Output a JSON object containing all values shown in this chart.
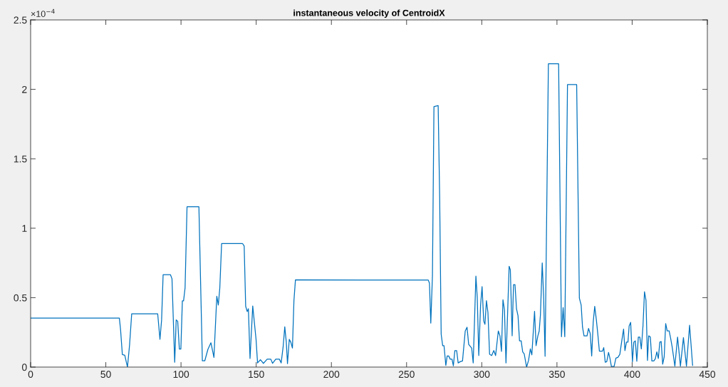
{
  "chart_data": {
    "type": "line",
    "title": "instantaneous velocity of CentroidX",
    "annotations": [
      "×10$^{−4}$"
    ],
    "xlim": [
      0,
      450
    ],
    "xticks": [
      0,
      50,
      100,
      150,
      200,
      250,
      300,
      350,
      400,
      450
    ],
    "ylim": [
      0,
      2.5
    ],
    "yticks": [
      0,
      0.5,
      1,
      1.5,
      2,
      2.5
    ],
    "grid": false,
    "marker": "none",
    "line_style": "solid",
    "series": [
      {
        "color": "#0072bd",
        "x": [
          0,
          59,
          59.8,
          61,
          62.6,
          64.4,
          65.8,
          67.2,
          84.5,
          86,
          87.1,
          88.1,
          93,
          94,
          95.8,
          96.8,
          97.8,
          98.9,
          99.9,
          100.9,
          101.7,
          102.7,
          104,
          111.9,
          114.2,
          115.8,
          117.9,
          119.9,
          121.9,
          123.8,
          124.8,
          125.8,
          127,
          140.9,
          142,
          143,
          144,
          144.8,
          145.9,
          147.7,
          149.9,
          150.9,
          152.8,
          154.8,
          157.3,
          159.7,
          160.9,
          163,
          165.4,
          166.6,
          167.9,
          169,
          170,
          170.8,
          172,
          173,
          174.1,
          175.1,
          176.1,
          264.4,
          265.2,
          266.1,
          267.2,
          268.2,
          271,
          272,
          273,
          274,
          274.9,
          276.1,
          277,
          278,
          279,
          280.2,
          281.1,
          282.1,
          283.3,
          284.3,
          285.7,
          287.2,
          289,
          290.2,
          291.3,
          293.3,
          294.3,
          296.1,
          297,
          298,
          299.2,
          300.2,
          301.3,
          302.1,
          303.1,
          304.1,
          305.2,
          306.6,
          308,
          309.2,
          311,
          312.1,
          313.1,
          314.1,
          315.1,
          316.1,
          318.2,
          319,
          320.2,
          321.1,
          322.1,
          323.1,
          324.1,
          325.1,
          326.2,
          327.2,
          328.2,
          329.8,
          331.1,
          332.3,
          333.3,
          335.1,
          336.1,
          337.3,
          338.2,
          339,
          340.2,
          341.1,
          342.1,
          344.3,
          351.1,
          353,
          354.1,
          355.2,
          357,
          363.1,
          364.9,
          366.1,
          367,
          368,
          370,
          371,
          372.1,
          373.1,
          374.1,
          375.1,
          376.2,
          377.2,
          378.2,
          380.3,
          381.1,
          382.1,
          383.1,
          384.3,
          385.2,
          386.2,
          388,
          389.2,
          390.5,
          391.8,
          393.1,
          394.3,
          395.2,
          396.2,
          397.2,
          398,
          399,
          400.2,
          401.1,
          402.1,
          403.1,
          404.1,
          405.1,
          406.1,
          407.2,
          408.2,
          409.2,
          410.2,
          411,
          412.1,
          413.1,
          414.4,
          415.4,
          416.4,
          417.4,
          418.4,
          419.3,
          420.3,
          421.3,
          422.3,
          423.3,
          424.6,
          425.6,
          426.6,
          428.4,
          430.2,
          432.1,
          434.1,
          436.1,
          438.2,
          440.2
        ],
        "values": [
          0.353,
          0.353,
          0.27,
          0.09,
          0.085,
          0,
          0.16,
          0.383,
          0.383,
          0.2,
          0.34,
          0.665,
          0.665,
          0.636,
          0.035,
          0.34,
          0.33,
          0.13,
          0.13,
          0.477,
          0.477,
          0.57,
          1.154,
          1.154,
          0.045,
          0.045,
          0.128,
          0.175,
          0.07,
          0.51,
          0.447,
          0.57,
          0.89,
          0.89,
          0.872,
          0.438,
          0.4,
          0.42,
          0.062,
          0.44,
          0.2,
          0.03,
          0.053,
          0.027,
          0.057,
          0.057,
          0.027,
          0.057,
          0.057,
          0.03,
          0.145,
          0.29,
          0.18,
          0.025,
          0.2,
          0.18,
          0.137,
          0.48,
          0.628,
          0.627,
          0.605,
          0.317,
          0.66,
          1.876,
          1.883,
          1.225,
          0.237,
          0.154,
          0.154,
          0.012,
          0.08,
          0.08,
          0.057,
          0.057,
          0.009,
          0.119,
          0.119,
          0.03,
          0.039,
          0.044,
          0.26,
          0.287,
          0.163,
          0.136,
          0.03,
          0.655,
          0.5,
          0.083,
          0.446,
          0.579,
          0.331,
          0.308,
          0.478,
          0.393,
          0.092,
          0.083,
          0.119,
          0.083,
          0.26,
          0.225,
          0.113,
          0.485,
          0.411,
          0.03,
          0.726,
          0.7,
          0.225,
          0.593,
          0.593,
          0.419,
          0.37,
          0.189,
          0.189,
          0.11,
          0.096,
          0,
          0.048,
          0.131,
          0.088,
          0.402,
          0.154,
          0.225,
          0.26,
          0.375,
          0.75,
          0.517,
          0.078,
          2.184,
          2.184,
          0.219,
          0.428,
          0.219,
          2.034,
          2.034,
          0.496,
          0.446,
          0.287,
          0.225,
          0.225,
          0.278,
          0.242,
          0.08,
          0.322,
          0.437,
          0.34,
          0.234,
          0.115,
          0.115,
          0.14,
          0.035,
          0.039,
          0.106,
          0.065,
          0.004,
          0.004,
          0.065,
          0.07,
          0.092,
          0.189,
          0.274,
          0.119,
          0.18,
          0.18,
          0.296,
          0.322,
          0.039,
          0.18,
          0.189,
          0.042,
          0.216,
          0.216,
          0.131,
          0.296,
          0.542,
          0.481,
          0.048,
          0.225,
          0.216,
          0.044,
          0.044,
          0.06,
          0.11,
          0.062,
          0.18,
          0.184,
          0.021,
          0.074,
          0.313,
          0.26,
          0.26,
          0.207,
          0.145,
          0.007,
          0.216,
          0.007,
          0.212,
          0.007,
          0.301,
          0.012
        ]
      }
    ]
  }
}
